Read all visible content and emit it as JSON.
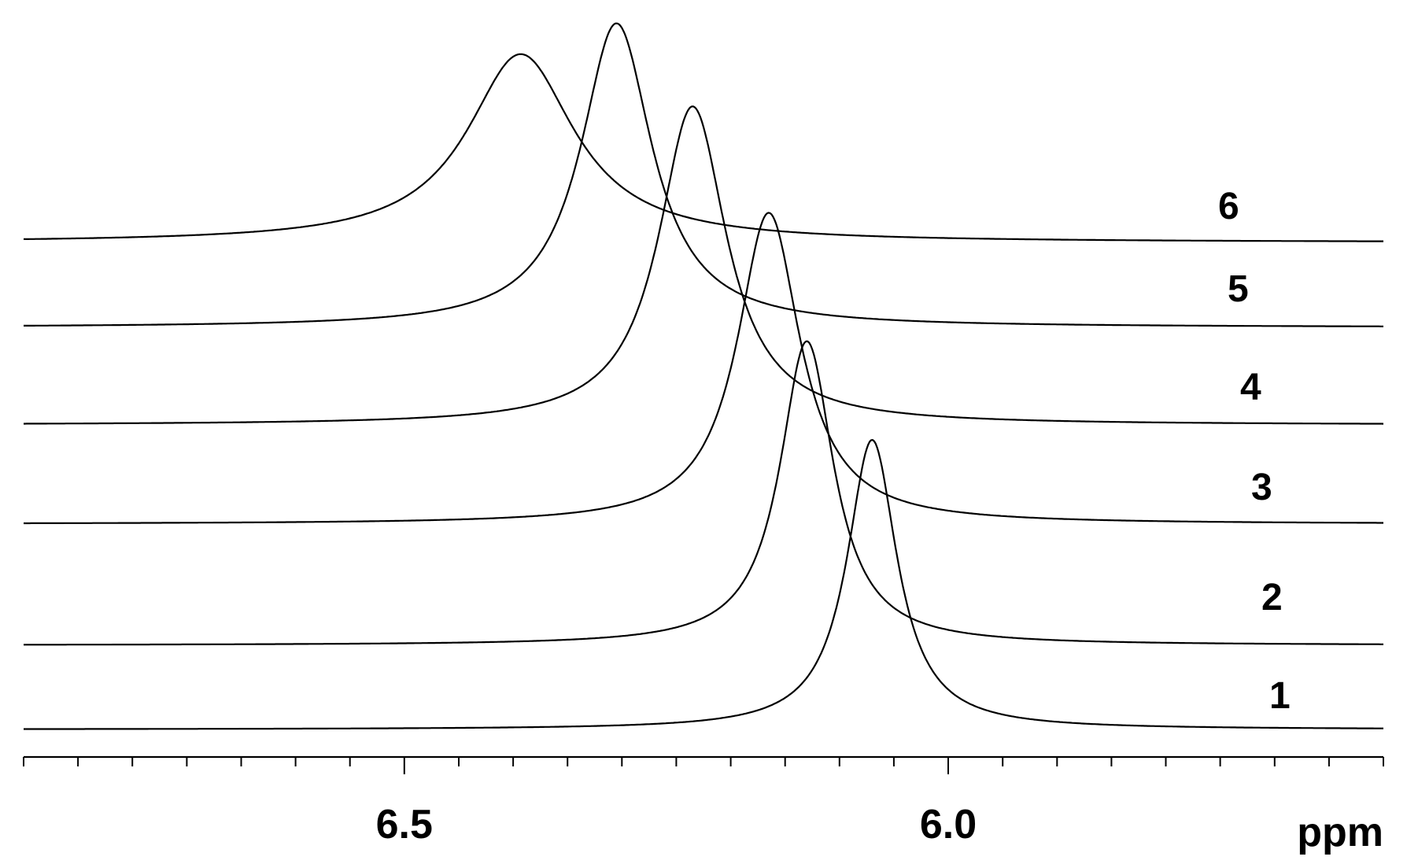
{
  "chart_data": {
    "type": "line",
    "xlabel": "ppm",
    "xlim": [
      6.85,
      5.6
    ],
    "x_reversed": true,
    "tick_labels": [
      "6.5",
      "6.0"
    ],
    "major_ticks": [
      6.5,
      6.0
    ],
    "minor_tick_step": 0.05,
    "grid": false,
    "series": [
      {
        "name": "1",
        "peak_ppm": 6.07,
        "relative_height": 0.4,
        "width_ppm": 0.028,
        "offset_level": 0
      },
      {
        "name": "2",
        "peak_ppm": 6.13,
        "relative_height": 0.42,
        "width_ppm": 0.03,
        "offset_level": 1
      },
      {
        "name": "3",
        "peak_ppm": 6.165,
        "relative_height": 0.43,
        "width_ppm": 0.035,
        "offset_level": 2
      },
      {
        "name": "4",
        "peak_ppm": 6.235,
        "relative_height": 0.44,
        "width_ppm": 0.038,
        "offset_level": 3
      },
      {
        "name": "5",
        "peak_ppm": 6.305,
        "relative_height": 0.42,
        "width_ppm": 0.04,
        "offset_level": 4
      },
      {
        "name": "6",
        "peak_ppm": 6.393,
        "relative_height": 0.26,
        "width_ppm": 0.06,
        "offset_level": 5
      }
    ]
  }
}
